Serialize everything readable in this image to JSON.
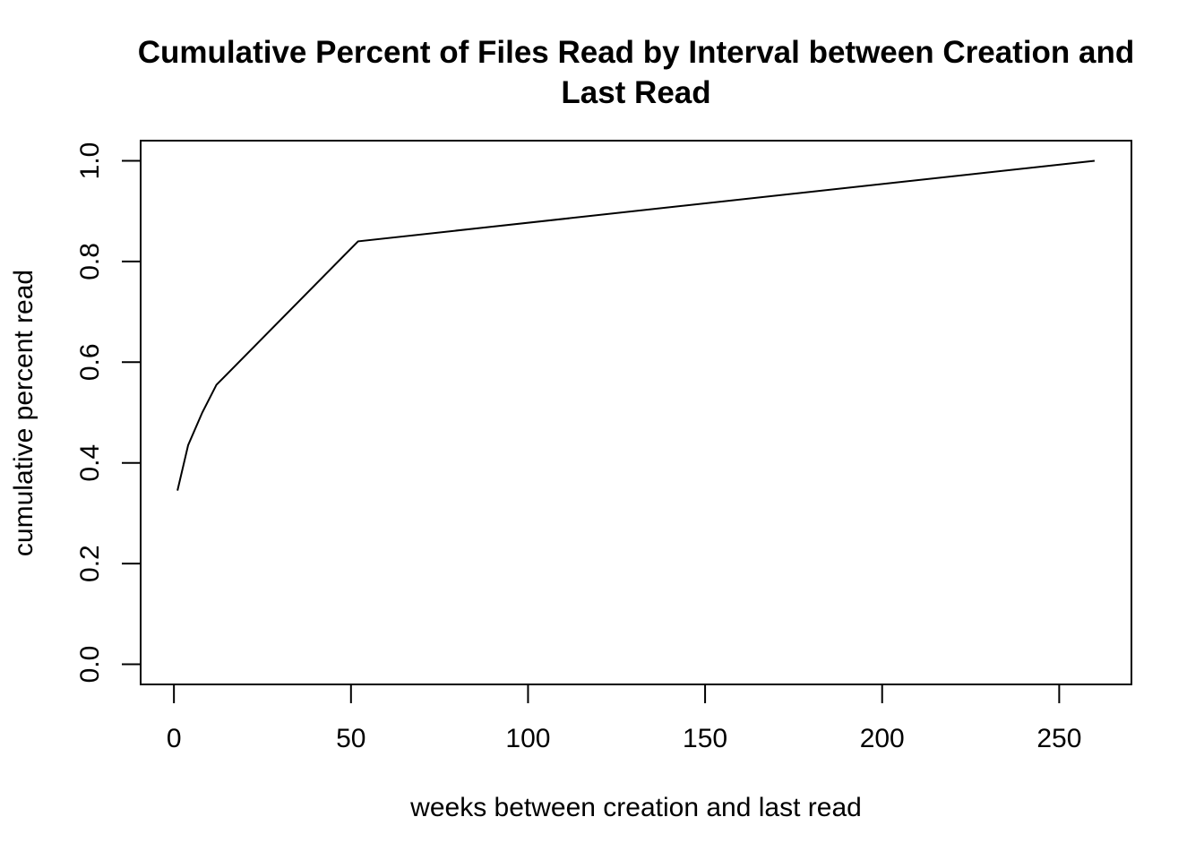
{
  "chart_data": {
    "type": "line",
    "title_lines": [
      "Cumulative Percent of Files Read by Interval between Creation and",
      "Last Read"
    ],
    "xlabel": "weeks between creation and last read",
    "ylabel": "cumulative percent read",
    "xlim": [
      -9.4,
      270.4
    ],
    "ylim": [
      -0.04,
      1.04
    ],
    "x_ticks": [
      0,
      50,
      100,
      150,
      200,
      250
    ],
    "x_tick_labels": [
      "0",
      "50",
      "100",
      "150",
      "200",
      "250"
    ],
    "y_ticks": [
      0.0,
      0.2,
      0.4,
      0.6,
      0.8,
      1.0
    ],
    "y_tick_labels": [
      "0.0",
      "0.2",
      "0.4",
      "0.6",
      "0.8",
      "1.0"
    ],
    "grid": false,
    "series": [
      {
        "x": [
          1,
          4,
          8,
          12,
          52,
          260
        ],
        "y": [
          0.345,
          0.435,
          0.5,
          0.555,
          0.84,
          1.0
        ]
      }
    ]
  }
}
